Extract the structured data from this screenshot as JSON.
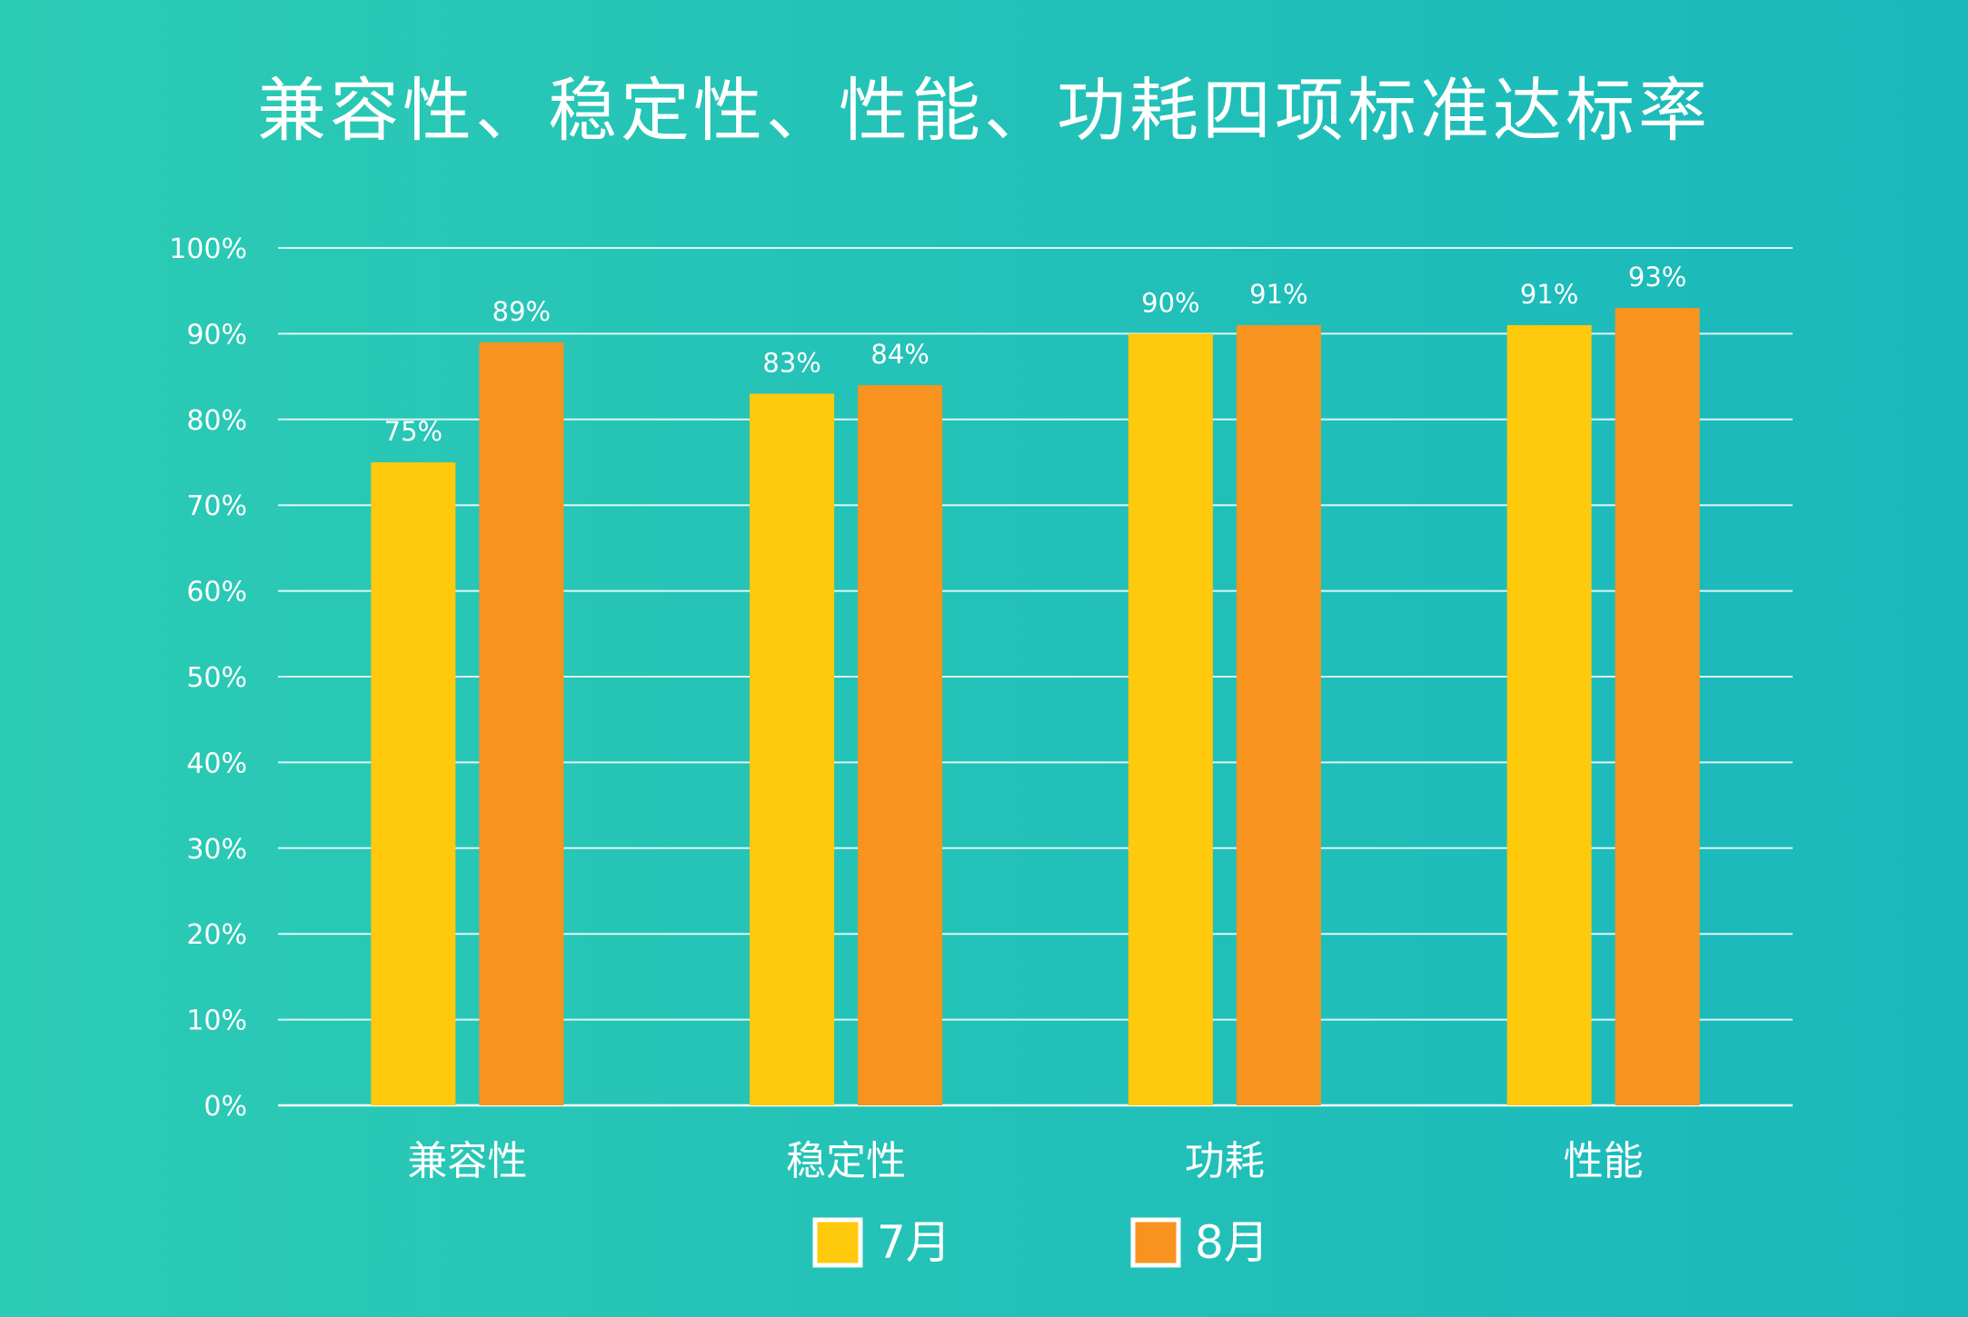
{
  "chart_data": {
    "type": "bar",
    "title": "兼容性、稳定性、性能、功耗四项标准达标率",
    "categories": [
      "兼容性",
      "稳定性",
      "功耗",
      "性能"
    ],
    "series": [
      {
        "name": "7月",
        "values": [
          75,
          83,
          90,
          91
        ],
        "labels": [
          "75%",
          "83%",
          "90%",
          "91%"
        ],
        "color": "#ffc90c"
      },
      {
        "name": "8月",
        "values": [
          89,
          84,
          91,
          93
        ],
        "labels": [
          "89%",
          "84%",
          "91%",
          "93%"
        ],
        "color": "#f7931e"
      }
    ],
    "ylim": [
      0,
      100
    ],
    "yticks": [
      0,
      10,
      20,
      30,
      40,
      50,
      60,
      70,
      80,
      90,
      100
    ],
    "ytick_labels": [
      "0%",
      "10%",
      "20%",
      "30%",
      "40%",
      "50%",
      "60%",
      "70%",
      "80%",
      "90%",
      "100%"
    ],
    "grid": true,
    "legend": "bottom-center"
  }
}
